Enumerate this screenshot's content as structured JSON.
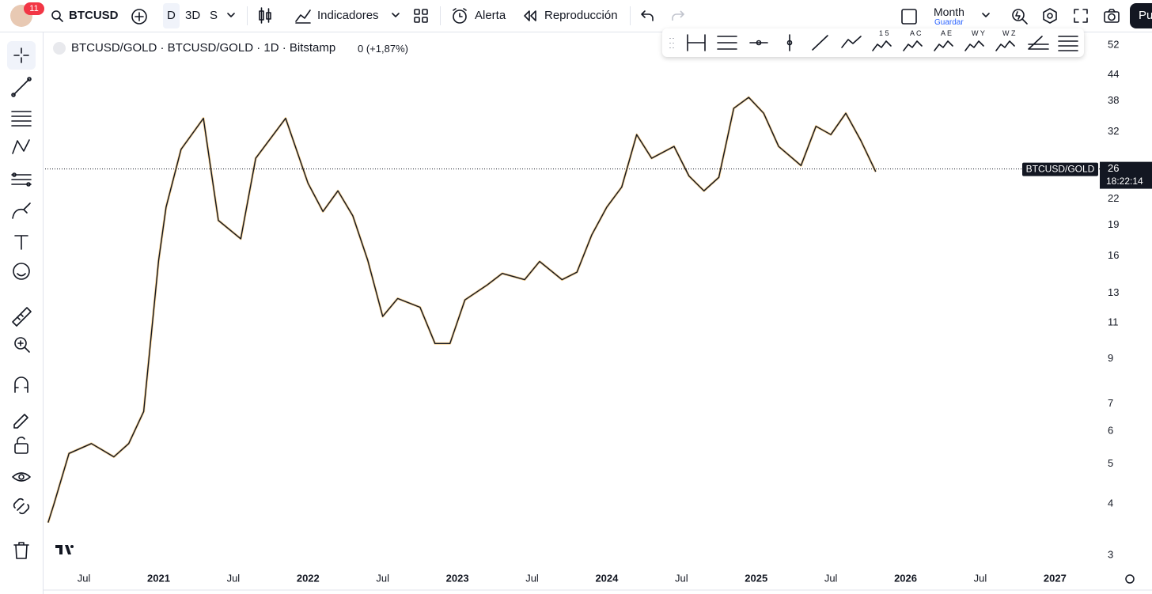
{
  "toolbar": {
    "badge": "11",
    "symbol": "BTCUSD",
    "intervals": [
      "D",
      "3D",
      "S"
    ],
    "indicators": "Indicadores",
    "alert": "Alerta",
    "replay": "Reproducción",
    "layout": "Month",
    "save": "Guardar",
    "publish": "Pu"
  },
  "drawing_tools": [
    "1 5",
    "A C",
    "A E",
    "W Y",
    "W Z"
  ],
  "legend": {
    "title": "BTCUSD/GOLD · BTCUSD/GOLD · 1D · Bitstamp",
    "change": "0 (+1,87%)"
  },
  "price_tag": {
    "name": "BTCUSD/GOLD",
    "value": 26,
    "time": "18:22:14"
  },
  "chart_data": {
    "type": "line",
    "log_scale": true,
    "grid": false,
    "color": "#131722",
    "x": [
      2020.26,
      2020.3,
      2020.4,
      2020.55,
      2020.7,
      2020.8,
      2020.9,
      2021.0,
      2021.05,
      2021.15,
      2021.3,
      2021.4,
      2021.55,
      2021.65,
      2021.85,
      2022.0,
      2022.1,
      2022.2,
      2022.3,
      2022.4,
      2022.5,
      2022.6,
      2022.75,
      2022.85,
      2022.95,
      2023.05,
      2023.2,
      2023.3,
      2023.45,
      2023.55,
      2023.7,
      2023.8,
      2023.9,
      2024.0,
      2024.1,
      2024.2,
      2024.3,
      2024.45,
      2024.55,
      2024.65,
      2024.75,
      2024.85,
      2024.95,
      2025.05,
      2025.15,
      2025.3,
      2025.4,
      2025.5,
      2025.6,
      2025.7,
      2025.8
    ],
    "values": [
      3.6,
      4,
      5.3,
      5.6,
      5.2,
      5.6,
      6.7,
      15.6,
      21,
      29,
      34.5,
      19.5,
      17.6,
      27.6,
      34.5,
      24,
      20.5,
      23,
      20,
      15.6,
      11.4,
      12.6,
      12,
      9.8,
      9.8,
      12.5,
      13.6,
      14.5,
      14,
      15.5,
      14,
      14.6,
      18,
      21,
      23.5,
      31.5,
      27.6,
      29.5,
      25,
      23,
      24.8,
      36.5,
      38.8,
      35.5,
      29.5,
      26.5,
      33,
      31.5,
      35.5,
      30.5,
      25.6
    ],
    "xlim": [
      2020.24,
      2027.3
    ],
    "xticks": [
      {
        "value": 2020.5,
        "label": "Jul"
      },
      2021,
      {
        "value": 2021.5,
        "label": "Jul"
      },
      2022,
      {
        "value": 2022.5,
        "label": "Jul"
      },
      2023,
      {
        "value": 2023.5,
        "label": "Jul"
      },
      2024,
      {
        "value": 2024.5,
        "label": "Jul"
      },
      2025,
      {
        "value": 2025.5,
        "label": "Jul"
      },
      2026,
      {
        "value": 2026.5,
        "label": "Jul"
      },
      2027
    ],
    "ylim": [
      2.77,
      54.8
    ],
    "yticks": [
      52,
      44,
      38,
      32,
      26,
      22,
      19,
      16,
      13,
      11,
      9,
      7,
      6,
      5,
      4,
      3
    ]
  }
}
